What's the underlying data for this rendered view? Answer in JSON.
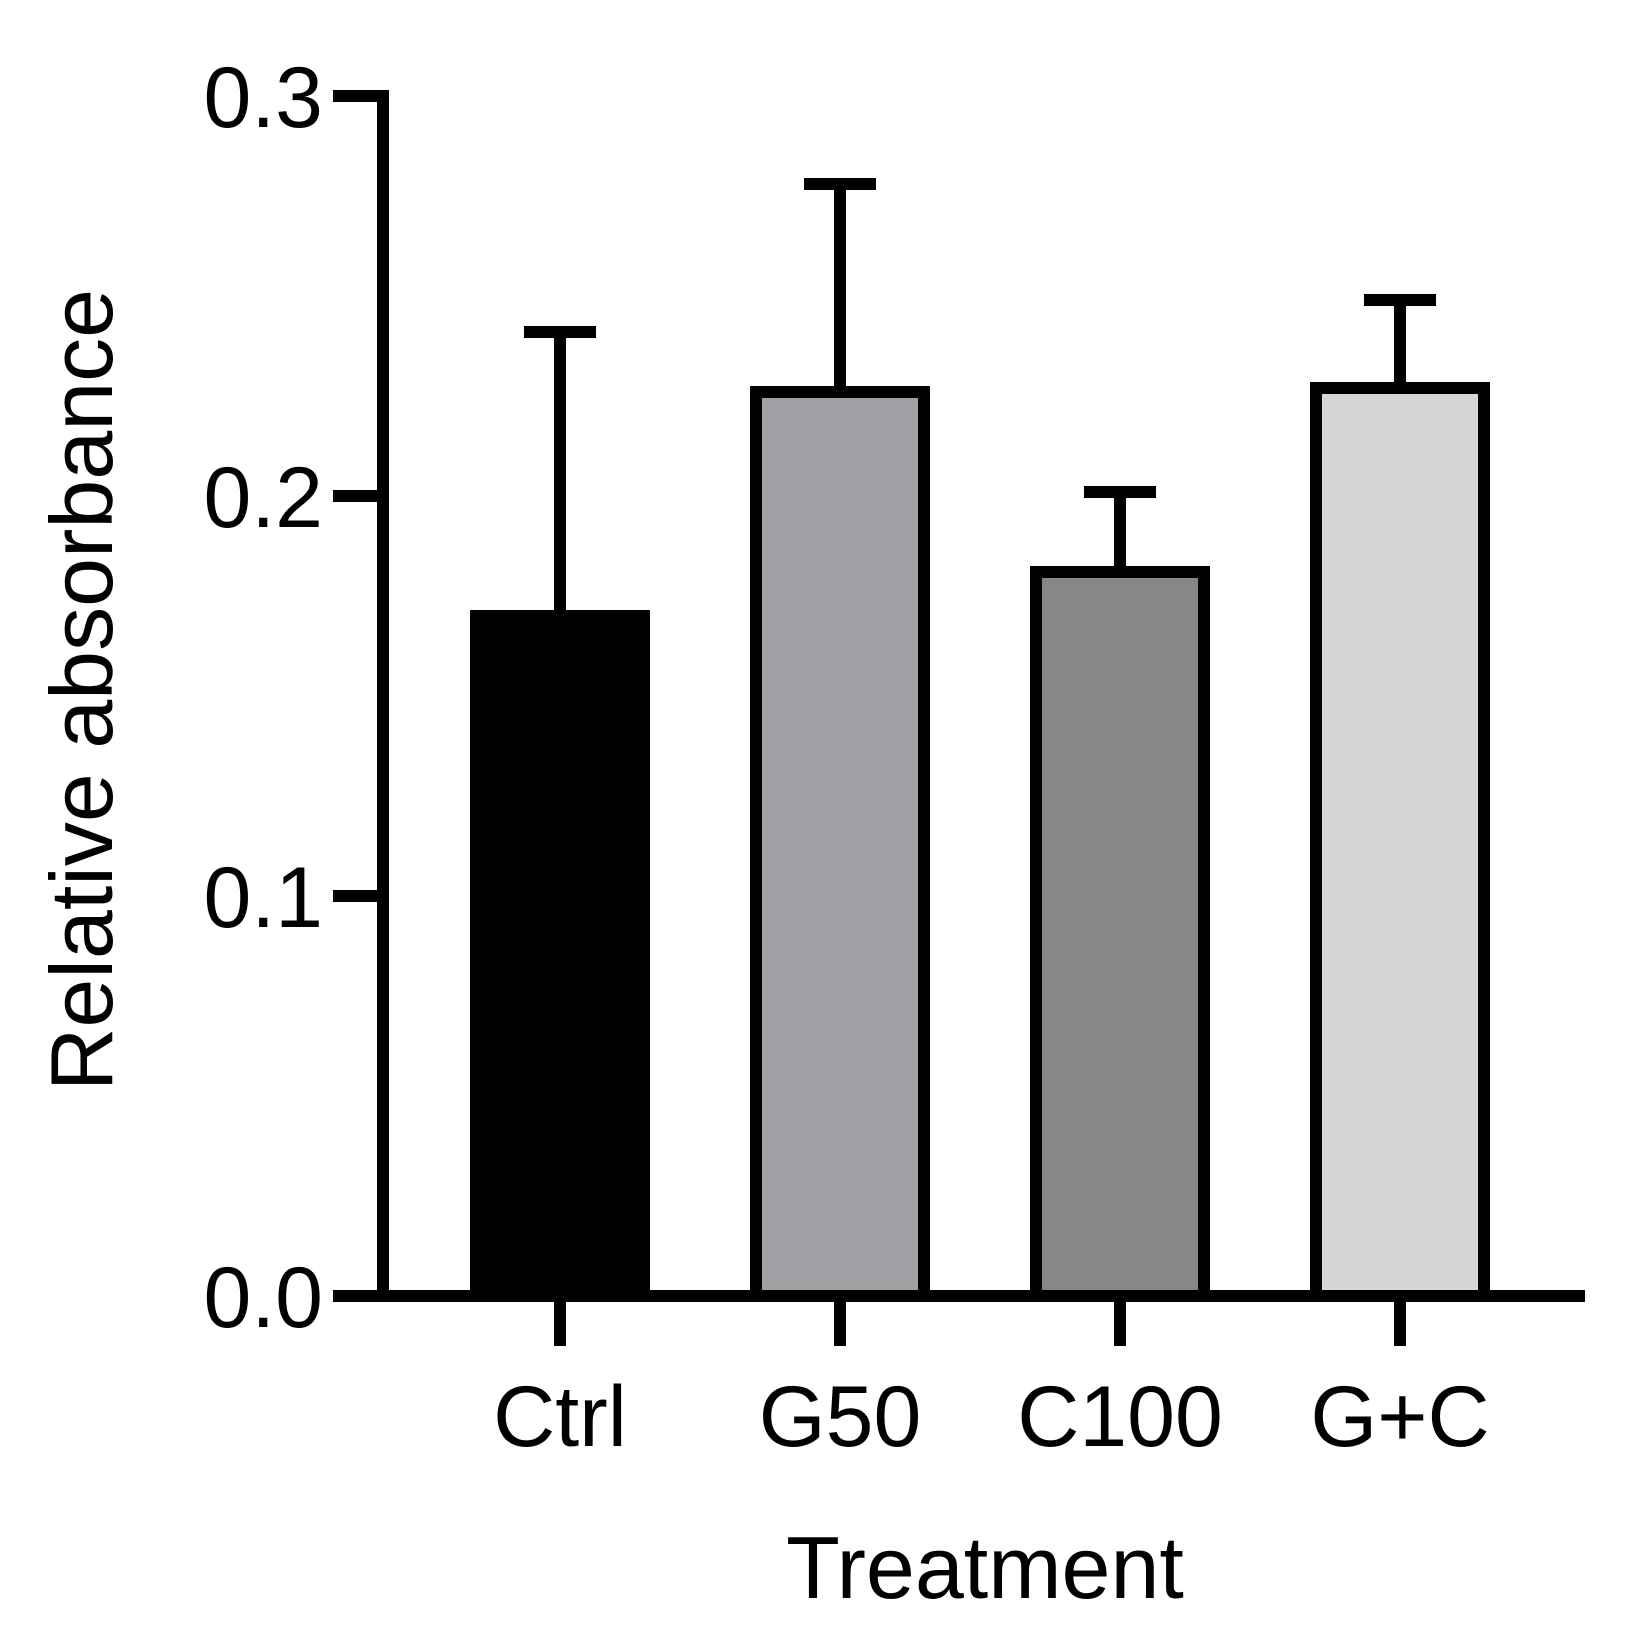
{
  "chart_data": {
    "type": "bar",
    "title": "",
    "xlabel": "Treatment",
    "ylabel": "Relative absorbance",
    "categories": [
      "Ctrl",
      "G50",
      "C100",
      "G+C"
    ],
    "values": [
      0.17,
      0.226,
      0.181,
      0.227
    ],
    "error_upper": [
      0.241,
      0.278,
      0.201,
      0.249
    ],
    "ylim": [
      0,
      0.3
    ],
    "yticks": [
      0.0,
      0.1,
      0.2,
      0.3
    ],
    "ytick_labels": [
      "0.0",
      "0.1",
      "0.2",
      "0.3"
    ],
    "bar_colors": [
      "#000000",
      "#a0a0a4",
      "#878787",
      "#d6d6d6"
    ],
    "grid": false,
    "legend": "none"
  }
}
